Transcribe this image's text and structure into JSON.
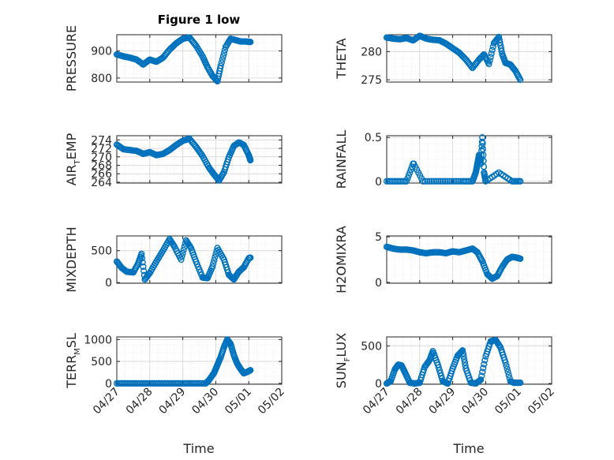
{
  "figure_title": "Figure 1 low",
  "x_axis_label": "Time",
  "colors": {
    "marker": "#0072bd",
    "axes": "#262626",
    "grid": "#dcdcdc"
  },
  "chart_data": [
    {
      "type": "scatter",
      "ylabel_main": "PRESSURE",
      "ylabel_sub": "",
      "ylabel_tail": "",
      "ylim": [
        785,
        960
      ],
      "yticks": [
        800,
        900
      ],
      "xticks": [
        "04/27",
        "04/28",
        "04/29",
        "04/30",
        "05/01",
        "05/02"
      ],
      "xlim": [
        "04/27",
        "05/02"
      ],
      "grid": true,
      "series": [
        {
          "x": [
            0,
            0.2,
            0.4,
            0.6,
            0.8,
            1.0,
            1.2,
            1.4,
            1.6,
            1.8,
            2.0,
            2.2,
            2.4,
            2.6,
            2.75,
            2.9,
            3.05,
            3.15,
            3.3,
            3.45,
            3.6,
            3.75,
            3.9,
            4.05
          ],
          "y": [
            887,
            880,
            875,
            868,
            850,
            868,
            860,
            875,
            905,
            928,
            945,
            950,
            920,
            880,
            840,
            808,
            788,
            845,
            915,
            945,
            940,
            935,
            935,
            933
          ]
        }
      ]
    },
    {
      "type": "scatter",
      "ylabel_main": "THETA",
      "ylabel_sub": "",
      "ylabel_tail": "",
      "ylim": [
        274.6,
        283
      ],
      "yticks": [
        275,
        280
      ],
      "xticks": [
        "04/27",
        "04/28",
        "04/29",
        "04/30",
        "05/01",
        "05/02"
      ],
      "xlim": [
        "04/27",
        "05/02"
      ],
      "grid": true,
      "series": [
        {
          "x": [
            0,
            0.2,
            0.4,
            0.6,
            0.8,
            1.0,
            1.2,
            1.4,
            1.6,
            1.8,
            2.0,
            2.2,
            2.4,
            2.6,
            2.8,
            2.95,
            3.1,
            3.25,
            3.4,
            3.5,
            3.6,
            3.75,
            3.9,
            4.05
          ],
          "y": [
            282.5,
            282.3,
            282.2,
            282.4,
            282.0,
            282.8,
            282.3,
            282.1,
            282.0,
            281.4,
            280.6,
            279.8,
            278.6,
            277.1,
            278.6,
            279.5,
            277.8,
            281.5,
            282.6,
            279.6,
            278.0,
            277.7,
            276.6,
            275.0
          ]
        }
      ]
    },
    {
      "type": "scatter",
      "ylabel_main": "AIR",
      "ylabel_sub": "T",
      "ylabel_tail": "EMP",
      "ylim": [
        263.8,
        275
      ],
      "yticks": [
        264,
        266,
        268,
        270,
        272,
        274
      ],
      "xticks": [
        "04/27",
        "04/28",
        "04/29",
        "04/30",
        "05/01",
        "05/02"
      ],
      "xlim": [
        "04/27",
        "05/02"
      ],
      "grid": true,
      "series": [
        {
          "x": [
            0,
            0.2,
            0.4,
            0.6,
            0.8,
            1.0,
            1.2,
            1.4,
            1.6,
            1.8,
            2.0,
            2.2,
            2.4,
            2.6,
            2.8,
            2.95,
            3.1,
            3.25,
            3.4,
            3.55,
            3.7,
            3.85,
            4.0,
            4.05
          ],
          "y": [
            272.9,
            271.8,
            271.6,
            271.4,
            270.7,
            271.1,
            270.4,
            270.7,
            271.6,
            272.8,
            273.8,
            274.3,
            272.4,
            270.2,
            267.4,
            265.8,
            264.4,
            266.4,
            270.0,
            272.6,
            273.4,
            272.8,
            270.4,
            269.2
          ]
        }
      ]
    },
    {
      "type": "scatter",
      "ylabel_main": "RAINFALL",
      "ylabel_sub": "",
      "ylabel_tail": "",
      "ylim": [
        -0.02,
        0.52
      ],
      "yticks": [
        0,
        0.5
      ],
      "xticks": [
        "04/27",
        "04/28",
        "04/29",
        "04/30",
        "05/01",
        "05/02"
      ],
      "xlim": [
        "04/27",
        "05/02"
      ],
      "grid": true,
      "series": [
        {
          "x": [
            0,
            0.3,
            0.6,
            0.8,
            0.82,
            1.1,
            1.5,
            1.9,
            2.3,
            2.6,
            2.7,
            2.75,
            2.8,
            2.85,
            2.9,
            2.95,
            3.0,
            3.4,
            3.8,
            4.05
          ],
          "y": [
            0,
            0,
            0,
            0.2,
            0.2,
            0,
            0,
            0,
            0,
            0,
            0.1,
            0.2,
            0.3,
            0.2,
            0.5,
            0.1,
            0,
            0.1,
            0,
            0
          ]
        }
      ]
    },
    {
      "type": "scatter",
      "ylabel_main": "MIXDEPTH",
      "ylabel_sub": "",
      "ylabel_tail": "",
      "ylim": [
        -10,
        730
      ],
      "yticks": [
        0,
        500
      ],
      "xticks": [
        "04/27",
        "04/28",
        "04/29",
        "04/30",
        "05/01",
        "05/02"
      ],
      "xlim": [
        "04/27",
        "05/02"
      ],
      "grid": true,
      "series": [
        {
          "x": [
            0,
            0.15,
            0.3,
            0.5,
            0.65,
            0.75,
            0.85,
            1.0,
            1.2,
            1.4,
            1.6,
            1.75,
            1.95,
            2.1,
            2.25,
            2.4,
            2.6,
            2.75,
            2.9,
            3.05,
            3.25,
            3.4,
            3.55,
            3.7,
            3.85,
            4.0,
            4.05
          ],
          "y": [
            330,
            230,
            170,
            160,
            300,
            450,
            50,
            150,
            330,
            500,
            680,
            560,
            360,
            660,
            540,
            330,
            80,
            70,
            250,
            540,
            360,
            120,
            50,
            170,
            240,
            380,
            390
          ]
        }
      ]
    },
    {
      "type": "scatter",
      "ylabel_main": "H2OMIXRA",
      "ylabel_sub": "",
      "ylabel_tail": "",
      "ylim": [
        -0.1,
        5.1
      ],
      "yticks": [
        0,
        5
      ],
      "xticks": [
        "04/27",
        "04/28",
        "04/29",
        "04/30",
        "05/01",
        "05/02"
      ],
      "xlim": [
        "04/27",
        "05/02"
      ],
      "grid": true,
      "series": [
        {
          "x": [
            0,
            0.2,
            0.4,
            0.6,
            0.8,
            1.0,
            1.2,
            1.4,
            1.6,
            1.8,
            2.0,
            2.2,
            2.4,
            2.6,
            2.75,
            2.9,
            3.05,
            3.2,
            3.35,
            3.5,
            3.65,
            3.8,
            3.95,
            4.05
          ],
          "y": [
            3.9,
            3.7,
            3.6,
            3.6,
            3.5,
            3.3,
            3.2,
            3.3,
            3.3,
            3.2,
            3.4,
            3.3,
            3.5,
            3.7,
            3.3,
            2.3,
            0.9,
            0.4,
            0.7,
            1.7,
            2.5,
            2.8,
            2.7,
            2.6
          ]
        }
      ]
    },
    {
      "type": "scatter",
      "ylabel_main": "TERR",
      "ylabel_sub": "M",
      "ylabel_tail": "SL",
      "ylim": [
        -20,
        1060
      ],
      "yticks": [
        0,
        500,
        1000
      ],
      "xticks": [
        "04/27",
        "04/28",
        "04/29",
        "04/30",
        "05/01",
        "05/02"
      ],
      "xlim": [
        "04/27",
        "05/02"
      ],
      "grid": true,
      "series": [
        {
          "x": [
            0,
            0.3,
            0.6,
            0.9,
            1.2,
            1.5,
            1.8,
            2.1,
            2.4,
            2.7,
            2.8,
            2.95,
            3.05,
            3.15,
            3.25,
            3.35,
            3.45,
            3.55,
            3.65,
            3.75,
            3.85,
            3.95,
            4.05
          ],
          "y": [
            0,
            0,
            0,
            0,
            0,
            0,
            0,
            0,
            0,
            0,
            80,
            240,
            420,
            600,
            830,
            1000,
            900,
            640,
            450,
            330,
            230,
            260,
            300
          ]
        }
      ]
    },
    {
      "type": "scatter",
      "ylabel_main": "SUN",
      "ylabel_sub": "F",
      "ylabel_tail": "LUX",
      "ylim": [
        -10,
        620
      ],
      "yticks": [
        0,
        500
      ],
      "xticks": [
        "04/27",
        "04/28",
        "04/29",
        "04/30",
        "05/01",
        "05/02"
      ],
      "xlim": [
        "04/27",
        "05/02"
      ],
      "grid": true,
      "series": [
        {
          "x": [
            0,
            0.12,
            0.25,
            0.35,
            0.45,
            0.55,
            0.7,
            0.85,
            1.0,
            1.15,
            1.3,
            1.4,
            1.55,
            1.7,
            1.85,
            2.0,
            2.15,
            2.3,
            2.4,
            2.55,
            2.7,
            2.85,
            3.0,
            3.15,
            3.3,
            3.45,
            3.6,
            3.75,
            3.85,
            4.05
          ],
          "y": [
            0,
            30,
            190,
            250,
            240,
            150,
            10,
            0,
            10,
            220,
            310,
            430,
            250,
            30,
            0,
            200,
            370,
            440,
            200,
            10,
            0,
            50,
            360,
            560,
            580,
            480,
            280,
            30,
            10,
            10
          ]
        }
      ]
    }
  ]
}
